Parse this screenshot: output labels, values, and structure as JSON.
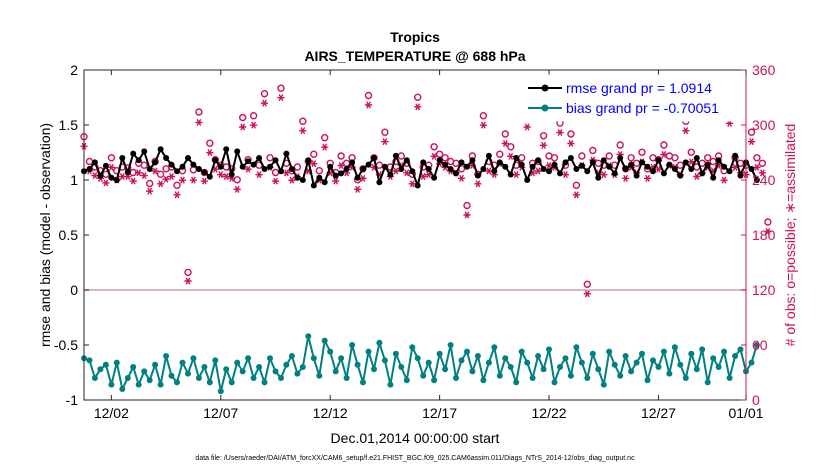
{
  "chart_data": {
    "type": "line",
    "title": "Tropics",
    "subtitle": "AIRS_TEMPERATURE @ 688 hPa",
    "xlabel": "Dec.01,2014 00:00:00 start",
    "ylabel": "rmse and bias (model - observation)",
    "ylabel_right": "# of obs: o=possible; ∗=assimilated",
    "footer": "data file: /Users/raeder/DAI/ATM_forcXX/CAM6_setup/f.e21.FHIST_BGC.f09_025.CAM6assim.011/Diags_NTrS_2014-12/obs_diag_output.nc",
    "xlim": [
      0.75,
      31.0
    ],
    "ylim": [
      -1,
      2
    ],
    "ylim_right": [
      0,
      360
    ],
    "x_ticks": [
      2,
      7,
      12,
      17,
      22,
      27,
      31
    ],
    "x_tick_labels": [
      "12/02",
      "12/07",
      "12/12",
      "12/17",
      "12/22",
      "12/27",
      "01/01"
    ],
    "y_ticks": [
      -1,
      -0.5,
      0,
      0.5,
      1,
      1.5,
      2
    ],
    "y_tick_labels": [
      "-1",
      "-0.5",
      "0",
      "0.5",
      "1",
      "1.5",
      "2"
    ],
    "y_ticks_right": [
      0,
      60,
      120,
      180,
      240,
      300,
      360
    ],
    "y_tick_labels_right": [
      "0",
      "60",
      "120",
      "180",
      "240",
      "300",
      "360"
    ],
    "zero_line": 0,
    "colors": {
      "rmse": "#000000",
      "bias": "#008080",
      "obs": "#d0105a",
      "legend_text": "#0000ff",
      "zero_line": "#c8a0a8"
    },
    "legend": [
      {
        "series": "rmse",
        "label": "rmse grand pr = 1.0914"
      },
      {
        "series": "bias",
        "label": "bias grand pr = -0.70051"
      }
    ],
    "series": [
      {
        "name": "rmse",
        "axis": "left",
        "x_start": 0.75,
        "x_step": 0.25,
        "values": [
          1.08,
          1.1,
          1.16,
          1.04,
          1.13,
          1.02,
          1.0,
          1.2,
          1.07,
          1.24,
          1.18,
          1.26,
          1.1,
          1.16,
          1.28,
          1.2,
          1.14,
          1.08,
          1.12,
          1.2,
          1.14,
          1.1,
          1.07,
          1.03,
          1.18,
          1.12,
          1.28,
          1.05,
          1.26,
          1.12,
          1.17,
          1.14,
          1.2,
          1.1,
          1.12,
          1.18,
          1.08,
          1.24,
          1.1,
          1.02,
          1.0,
          1.18,
          0.95,
          1.02,
          0.98,
          1.12,
          1.04,
          1.06,
          1.1,
          1.16,
          1.02,
          1.1,
          1.14,
          1.2,
          0.98,
          1.12,
          1.05,
          1.22,
          1.1,
          1.18,
          1.08,
          0.95,
          1.16,
          1.1,
          1.02,
          1.18,
          1.14,
          1.1,
          1.06,
          1.16,
          1.12,
          1.18,
          1.04,
          1.1,
          1.22,
          1.08,
          1.16,
          1.12,
          1.05,
          1.2,
          1.14,
          1.0,
          1.12,
          1.18,
          1.1,
          1.08,
          1.14,
          1.06,
          1.16,
          1.2,
          1.1,
          1.13,
          1.08,
          1.16,
          1.02,
          1.18,
          1.12,
          1.06,
          1.2,
          1.1,
          1.14,
          1.04,
          1.16,
          1.12,
          1.08,
          1.18,
          1.06,
          1.14,
          1.1,
          1.04,
          1.16,
          1.1,
          1.2,
          1.06,
          1.14,
          1.02,
          1.18,
          1.12,
          1.08,
          1.22,
          1.04,
          1.16,
          1.1,
          1.0
        ]
      },
      {
        "name": "bias",
        "axis": "left",
        "x_start": 0.75,
        "x_step": 0.25,
        "values": [
          -0.62,
          -0.64,
          -0.8,
          -0.72,
          -0.68,
          -0.86,
          -0.66,
          -0.9,
          -0.8,
          -0.7,
          -0.86,
          -0.74,
          -0.82,
          -0.68,
          -0.86,
          -0.6,
          -0.78,
          -0.84,
          -0.66,
          -0.76,
          -0.62,
          -0.8,
          -0.7,
          -0.84,
          -0.64,
          -0.92,
          -0.72,
          -0.84,
          -0.66,
          -0.74,
          -0.62,
          -0.8,
          -0.7,
          -0.84,
          -0.62,
          -0.74,
          -0.8,
          -0.68,
          -0.6,
          -0.76,
          -0.7,
          -0.42,
          -0.62,
          -0.78,
          -0.46,
          -0.56,
          -0.74,
          -0.62,
          -0.8,
          -0.5,
          -0.68,
          -0.84,
          -0.56,
          -0.72,
          -0.48,
          -0.64,
          -0.86,
          -0.58,
          -0.7,
          -0.82,
          -0.52,
          -0.62,
          -0.78,
          -0.66,
          -0.82,
          -0.58,
          -0.72,
          -0.5,
          -0.8,
          -0.64,
          -0.56,
          -0.74,
          -0.6,
          -0.82,
          -0.66,
          -0.52,
          -0.78,
          -0.62,
          -0.7,
          -0.84,
          -0.56,
          -0.66,
          -0.8,
          -0.6,
          -0.72,
          -0.54,
          -0.84,
          -0.7,
          -0.62,
          -0.78,
          -0.52,
          -0.66,
          -0.8,
          -0.58,
          -0.72,
          -0.86,
          -0.56,
          -0.68,
          -0.78,
          -0.6,
          -0.74,
          -0.66,
          -0.58,
          -0.82,
          -0.64,
          -0.7,
          -0.56,
          -0.76,
          -0.52,
          -0.68,
          -0.8,
          -0.58,
          -0.72,
          -0.54,
          -0.84,
          -0.62,
          -0.7,
          -0.56,
          -0.8,
          -0.6,
          -0.54,
          -0.74,
          -0.66,
          -0.5
        ]
      },
      {
        "name": "obs_possible",
        "axis": "right",
        "x_start": 0.75,
        "x_step": 0.25,
        "values": [
          285,
          258,
          252,
          248,
          244,
          262,
          248,
          252,
          251,
          246,
          256,
          254,
          234,
          258,
          244,
          250,
          252,
          232,
          248,
          137,
          249,
          312,
          246,
          278,
          260,
          254,
          252,
          250,
          238,
          306,
          260,
          308,
          254,
          332,
          262,
          246,
          338,
          256,
          248,
          252,
          302,
          258,
          266,
          248,
          284,
          256,
          246,
          264,
          256,
          262,
          238,
          250,
          330,
          262,
          254,
          290,
          252,
          258,
          264,
          256,
          244,
          328,
          252,
          254,
          274,
          266,
          262,
          258,
          256,
          250,
          210,
          264,
          244,
          308,
          258,
          254,
          266,
          288,
          274,
          254,
          262,
          306,
          256,
          258,
          286,
          264,
          262,
          300,
          254,
          288,
          232,
          264,
          124,
          270,
          256,
          254,
          264,
          254,
          276,
          250,
          262,
          256,
          268,
          250,
          262,
          260,
          276,
          264,
          262,
          254,
          302,
          268,
          252,
          256,
          262,
          258,
          264,
          248,
          310,
          262,
          256,
          254,
          290,
          262,
          256,
          192
        ]
      },
      {
        "name": "obs_assimilated",
        "axis": "right",
        "x_start": 0.75,
        "x_step": 0.25,
        "values": [
          279,
          252,
          247,
          244,
          239,
          256,
          242,
          246,
          246,
          241,
          250,
          247,
          230,
          252,
          238,
          243,
          246,
          226,
          242,
          132,
          242,
          305,
          241,
          272,
          254,
          248,
          246,
          244,
          232,
          300,
          254,
          302,
          248,
          326,
          256,
          241,
          332,
          250,
          242,
          246,
          296,
          252,
          260,
          242,
          278,
          250,
          241,
          258,
          250,
          256,
          232,
          244,
          324,
          256,
          248,
          284,
          246,
          252,
          258,
          250,
          238,
          322,
          246,
          248,
          268,
          260,
          256,
          252,
          250,
          244,
          204,
          258,
          238,
          302,
          252,
          248,
          260,
          282,
          268,
          248,
          256,
          300,
          250,
          252,
          280,
          258,
          256,
          294,
          248,
          282,
          226,
          258,
          118,
          264,
          250,
          248,
          258,
          248,
          270,
          244,
          256,
          250,
          262,
          244,
          256,
          254,
          270,
          258,
          256,
          248,
          296,
          262,
          246,
          250,
          256,
          252,
          258,
          242,
          304,
          256,
          250,
          248,
          284,
          256,
          250,
          186
        ]
      }
    ]
  }
}
